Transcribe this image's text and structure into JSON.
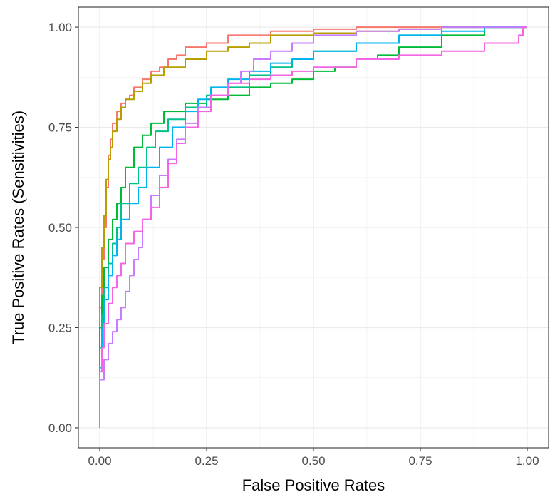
{
  "chart_data": {
    "type": "line",
    "title": "",
    "xlabel": "False Positive Rates",
    "ylabel": "True Positive Rates (Sensitivities)",
    "xlim": [
      -0.05,
      1.05
    ],
    "ylim": [
      -0.05,
      1.05
    ],
    "x_ticks": [
      "0.00",
      "0.25",
      "0.50",
      "0.75",
      "1.00"
    ],
    "y_ticks": [
      "0.00",
      "0.25",
      "0.50",
      "0.75",
      "1.00"
    ],
    "grid": true,
    "legend": "none",
    "series": [
      {
        "color": "#F8766D",
        "points": [
          [
            0,
            0
          ],
          [
            0,
            0.15
          ],
          [
            0.005,
            0.3
          ],
          [
            0.01,
            0.42
          ],
          [
            0.015,
            0.5
          ],
          [
            0.02,
            0.6
          ],
          [
            0.025,
            0.68
          ],
          [
            0.03,
            0.72
          ],
          [
            0.04,
            0.76
          ],
          [
            0.05,
            0.79
          ],
          [
            0.06,
            0.81
          ],
          [
            0.07,
            0.82
          ],
          [
            0.08,
            0.83
          ],
          [
            0.1,
            0.85
          ],
          [
            0.12,
            0.87
          ],
          [
            0.14,
            0.89
          ],
          [
            0.16,
            0.9
          ],
          [
            0.18,
            0.92
          ],
          [
            0.2,
            0.93
          ],
          [
            0.25,
            0.95
          ],
          [
            0.3,
            0.96
          ],
          [
            0.4,
            0.98
          ],
          [
            0.5,
            0.99
          ],
          [
            0.6,
            0.995
          ],
          [
            0.8,
            1.0
          ],
          [
            1.0,
            1.0
          ]
        ]
      },
      {
        "color": "#B79F00",
        "points": [
          [
            0,
            0
          ],
          [
            0,
            0.2
          ],
          [
            0.005,
            0.35
          ],
          [
            0.01,
            0.45
          ],
          [
            0.015,
            0.53
          ],
          [
            0.02,
            0.62
          ],
          [
            0.025,
            0.67
          ],
          [
            0.03,
            0.7
          ],
          [
            0.04,
            0.74
          ],
          [
            0.05,
            0.77
          ],
          [
            0.06,
            0.8
          ],
          [
            0.08,
            0.82
          ],
          [
            0.1,
            0.84
          ],
          [
            0.12,
            0.86
          ],
          [
            0.15,
            0.88
          ],
          [
            0.2,
            0.9
          ],
          [
            0.25,
            0.92
          ],
          [
            0.3,
            0.94
          ],
          [
            0.35,
            0.95
          ],
          [
            0.4,
            0.96
          ],
          [
            0.5,
            0.98
          ],
          [
            0.6,
            0.985
          ],
          [
            0.7,
            0.99
          ],
          [
            0.8,
            0.995
          ],
          [
            1.0,
            1.0
          ]
        ]
      },
      {
        "color": "#00BA38",
        "points": [
          [
            0,
            0
          ],
          [
            0,
            0.1
          ],
          [
            0.005,
            0.25
          ],
          [
            0.01,
            0.33
          ],
          [
            0.02,
            0.4
          ],
          [
            0.03,
            0.47
          ],
          [
            0.04,
            0.52
          ],
          [
            0.05,
            0.56
          ],
          [
            0.06,
            0.6
          ],
          [
            0.08,
            0.65
          ],
          [
            0.1,
            0.7
          ],
          [
            0.12,
            0.73
          ],
          [
            0.15,
            0.76
          ],
          [
            0.2,
            0.79
          ],
          [
            0.25,
            0.81
          ],
          [
            0.3,
            0.82
          ],
          [
            0.35,
            0.83
          ],
          [
            0.4,
            0.85
          ],
          [
            0.45,
            0.86
          ],
          [
            0.5,
            0.87
          ],
          [
            0.55,
            0.89
          ],
          [
            0.6,
            0.9
          ],
          [
            0.65,
            0.92
          ],
          [
            0.7,
            0.93
          ],
          [
            0.8,
            0.95
          ],
          [
            0.9,
            0.98
          ],
          [
            1.0,
            1.0
          ]
        ]
      },
      {
        "color": "#00C08B",
        "points": [
          [
            0,
            0
          ],
          [
            0,
            0.08
          ],
          [
            0.005,
            0.2
          ],
          [
            0.01,
            0.28
          ],
          [
            0.02,
            0.35
          ],
          [
            0.03,
            0.41
          ],
          [
            0.04,
            0.46
          ],
          [
            0.05,
            0.5
          ],
          [
            0.07,
            0.56
          ],
          [
            0.09,
            0.61
          ],
          [
            0.11,
            0.65
          ],
          [
            0.13,
            0.7
          ],
          [
            0.16,
            0.74
          ],
          [
            0.2,
            0.77
          ],
          [
            0.25,
            0.8
          ],
          [
            0.3,
            0.83
          ],
          [
            0.35,
            0.85
          ],
          [
            0.4,
            0.88
          ],
          [
            0.45,
            0.9
          ],
          [
            0.5,
            0.92
          ],
          [
            0.6,
            0.94
          ],
          [
            0.7,
            0.96
          ],
          [
            0.8,
            0.98
          ],
          [
            1.0,
            1.0
          ]
        ]
      },
      {
        "color": "#00B4EF",
        "points": [
          [
            0,
            0
          ],
          [
            0,
            0.05
          ],
          [
            0.005,
            0.15
          ],
          [
            0.01,
            0.25
          ],
          [
            0.02,
            0.32
          ],
          [
            0.03,
            0.38
          ],
          [
            0.04,
            0.43
          ],
          [
            0.05,
            0.47
          ],
          [
            0.07,
            0.52
          ],
          [
            0.09,
            0.56
          ],
          [
            0.11,
            0.6
          ],
          [
            0.14,
            0.65
          ],
          [
            0.17,
            0.7
          ],
          [
            0.2,
            0.75
          ],
          [
            0.23,
            0.79
          ],
          [
            0.26,
            0.82
          ],
          [
            0.3,
            0.85
          ],
          [
            0.35,
            0.87
          ],
          [
            0.4,
            0.89
          ],
          [
            0.45,
            0.91
          ],
          [
            0.5,
            0.92
          ],
          [
            0.6,
            0.94
          ],
          [
            0.7,
            0.96
          ],
          [
            0.8,
            0.98
          ],
          [
            0.9,
            0.99
          ],
          [
            1.0,
            1.0
          ]
        ]
      },
      {
        "color": "#C77CFF",
        "points": [
          [
            0,
            0
          ],
          [
            0,
            0.05
          ],
          [
            0.01,
            0.12
          ],
          [
            0.02,
            0.17
          ],
          [
            0.03,
            0.21
          ],
          [
            0.04,
            0.24
          ],
          [
            0.05,
            0.27
          ],
          [
            0.06,
            0.3
          ],
          [
            0.07,
            0.34
          ],
          [
            0.08,
            0.38
          ],
          [
            0.09,
            0.42
          ],
          [
            0.1,
            0.45
          ],
          [
            0.12,
            0.52
          ],
          [
            0.14,
            0.58
          ],
          [
            0.16,
            0.63
          ],
          [
            0.18,
            0.67
          ],
          [
            0.2,
            0.72
          ],
          [
            0.23,
            0.76
          ],
          [
            0.26,
            0.8
          ],
          [
            0.3,
            0.83
          ],
          [
            0.33,
            0.86
          ],
          [
            0.36,
            0.89
          ],
          [
            0.4,
            0.92
          ],
          [
            0.45,
            0.94
          ],
          [
            0.5,
            0.96
          ],
          [
            0.6,
            0.98
          ],
          [
            0.7,
            0.99
          ],
          [
            0.8,
            0.995
          ],
          [
            1.0,
            1.0
          ]
        ]
      },
      {
        "color": "#F564E3",
        "points": [
          [
            0,
            0
          ],
          [
            0,
            0.05
          ],
          [
            0.005,
            0.14
          ],
          [
            0.01,
            0.2
          ],
          [
            0.02,
            0.26
          ],
          [
            0.03,
            0.31
          ],
          [
            0.04,
            0.35
          ],
          [
            0.05,
            0.38
          ],
          [
            0.06,
            0.41
          ],
          [
            0.08,
            0.46
          ],
          [
            0.1,
            0.49
          ],
          [
            0.12,
            0.52
          ],
          [
            0.14,
            0.55
          ],
          [
            0.16,
            0.6
          ],
          [
            0.18,
            0.66
          ],
          [
            0.2,
            0.71
          ],
          [
            0.23,
            0.75
          ],
          [
            0.26,
            0.79
          ],
          [
            0.3,
            0.83
          ],
          [
            0.35,
            0.86
          ],
          [
            0.4,
            0.87
          ],
          [
            0.45,
            0.88
          ],
          [
            0.5,
            0.89
          ],
          [
            0.6,
            0.9
          ],
          [
            0.7,
            0.92
          ],
          [
            0.8,
            0.93
          ],
          [
            0.9,
            0.94
          ],
          [
            0.98,
            0.96
          ],
          [
            0.99,
            0.98
          ],
          [
            1.0,
            1.0
          ]
        ]
      }
    ]
  }
}
